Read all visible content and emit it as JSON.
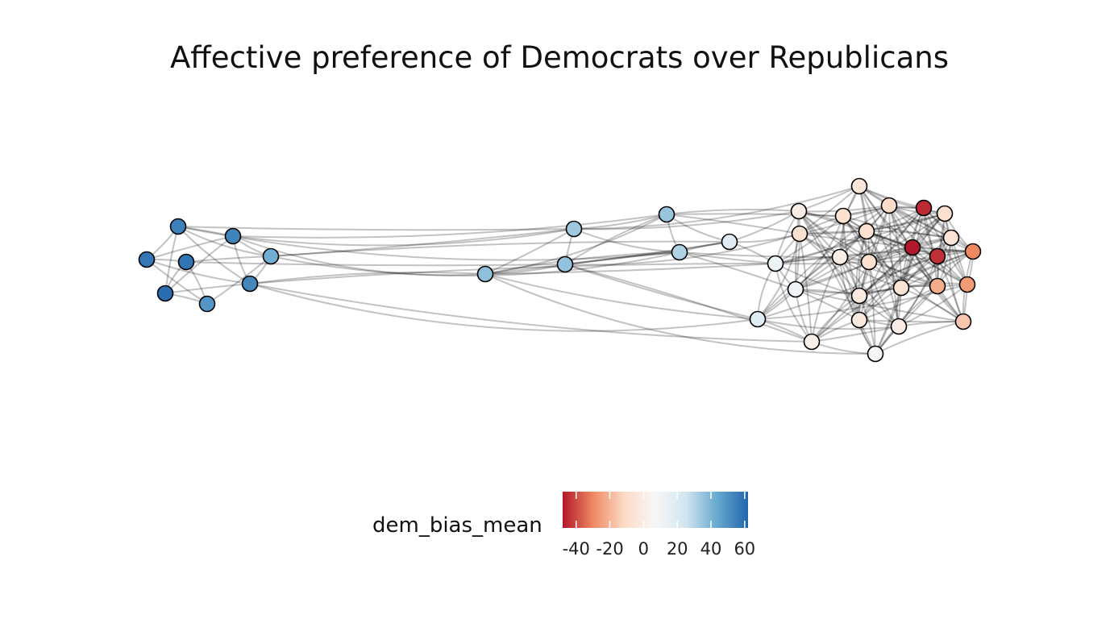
{
  "title": "Affective preference of Democrats over Republicans",
  "legend": {
    "title": "dem_bias_mean",
    "min": -48,
    "max": 62,
    "ticks": [
      -40,
      -20,
      0,
      20,
      40,
      60
    ],
    "tick_labels": [
      "-40",
      "-20",
      "0",
      "20",
      "40",
      "60"
    ]
  },
  "colors": {
    "stops": [
      "#b2182b",
      "#ef8a62",
      "#fddbc7",
      "#f7f7f7",
      "#d1e5f0",
      "#67a9cf",
      "#2166ac"
    ],
    "edge": "#000000",
    "node_stroke": "#000000"
  }
}
